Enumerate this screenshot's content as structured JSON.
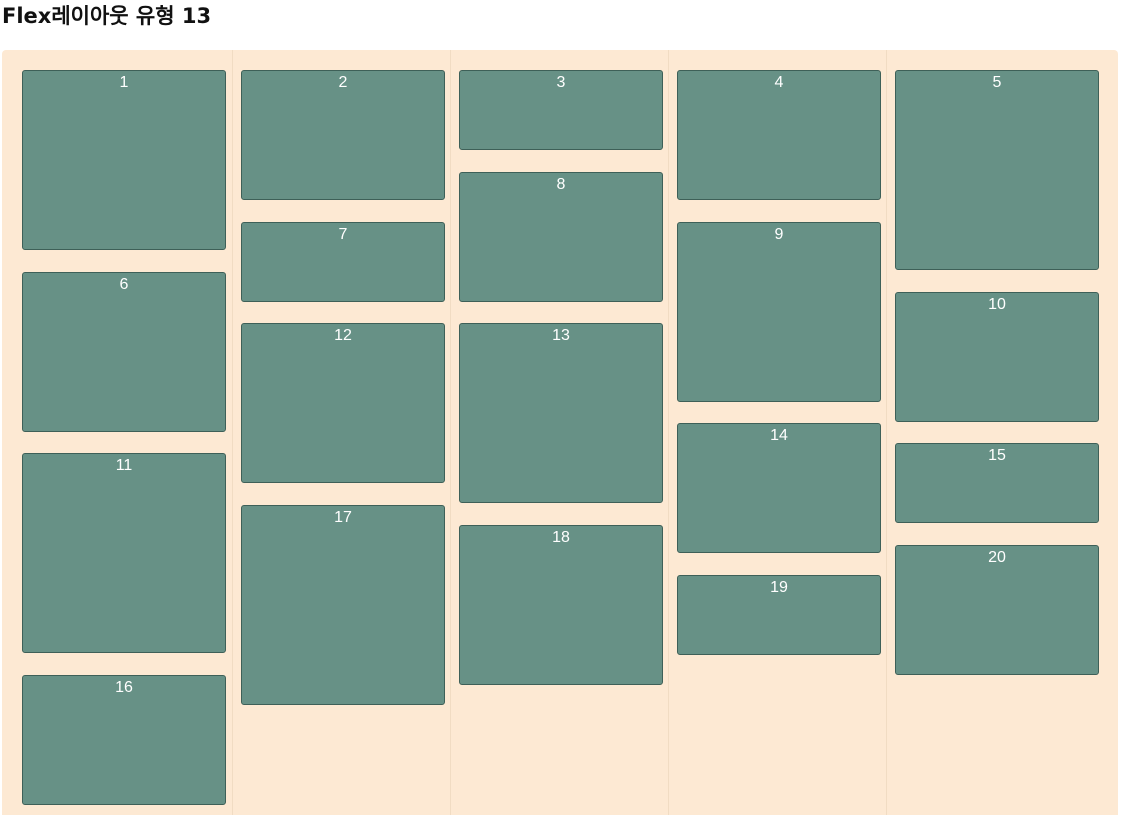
{
  "page": {
    "title": "Flex레이아웃 유형 13"
  },
  "colors": {
    "container_bg": "#fde9d3",
    "box_bg": "#679186",
    "box_border": "#3e6058",
    "box_text": "#ffffff"
  },
  "boxes": [
    "1",
    "2",
    "3",
    "4",
    "5",
    "6",
    "7",
    "8",
    "9",
    "10",
    "11",
    "12",
    "13",
    "14",
    "15",
    "16",
    "17",
    "18",
    "19",
    "20"
  ]
}
